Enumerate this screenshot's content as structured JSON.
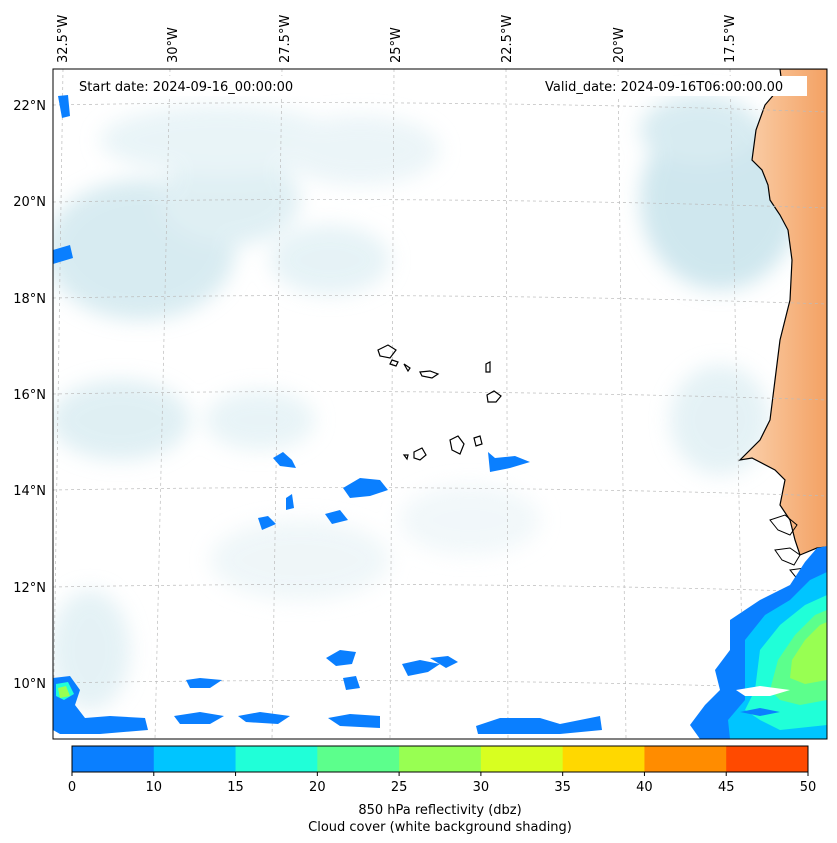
{
  "header": {
    "start_label": "Start date: 2024-09-16_00:00:00",
    "valid_label": "Valid_date: 2024-09-16T06:00:00.00"
  },
  "map": {
    "lon_labels": [
      "32.5°W",
      "30°W",
      "27.5°W",
      "25°W",
      "22.5°W",
      "20°W",
      "17.5°W"
    ],
    "lat_labels": [
      "22°N",
      "20°N",
      "18°N",
      "16°N",
      "14°N",
      "12°N",
      "10°N"
    ],
    "gridlines": true
  },
  "colorbar": {
    "ticks": [
      "0",
      "10",
      "15",
      "20",
      "25",
      "30",
      "35",
      "40",
      "45",
      "50"
    ],
    "colors": [
      "#0a7fff",
      "#00c5ff",
      "#20ffd8",
      "#5cff8c",
      "#98ff52",
      "#d8ff20",
      "#ffd800",
      "#ff8c00",
      "#ff4a00"
    ],
    "label_line1": "850 hPa reflectivity (dbz)",
    "label_line2": "Cloud cover (white background shading)"
  },
  "colors": {
    "cloud": "#a8d4e0",
    "land": "#f4a060",
    "coast": "#000000"
  }
}
